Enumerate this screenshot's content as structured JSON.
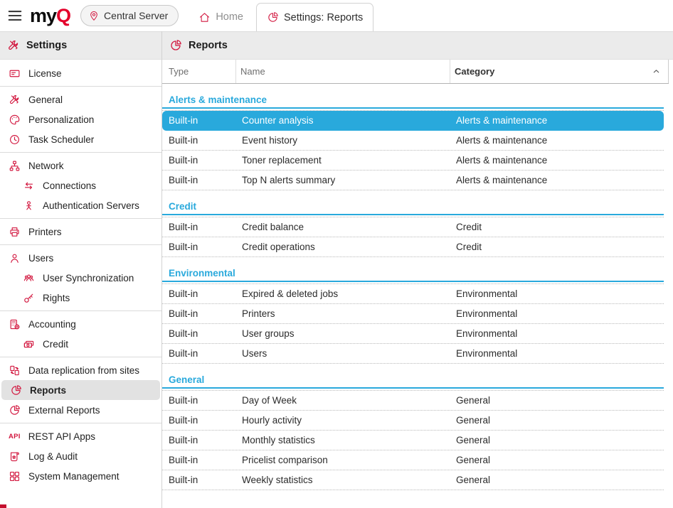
{
  "colors": {
    "accent_red": "#d2163e",
    "logo_red": "#e4002b",
    "selection_cyan": "#29a9dc",
    "header_gray": "#ebebeb"
  },
  "topbar": {
    "logo_my": "my",
    "logo_q": "Q",
    "server_label": "Central Server",
    "tabs": [
      {
        "label": "Home",
        "icon": "home-icon",
        "active": false
      },
      {
        "label": "Settings: Reports",
        "icon": "pie-chart-icon",
        "active": true
      }
    ]
  },
  "sidebar": {
    "title": "Settings",
    "title_icon": "tools-icon",
    "groups": [
      {
        "items": [
          {
            "label": "License",
            "icon": "license-icon"
          }
        ]
      },
      {
        "items": [
          {
            "label": "General",
            "icon": "tools-icon"
          },
          {
            "label": "Personalization",
            "icon": "palette-icon"
          },
          {
            "label": "Task Scheduler",
            "icon": "clock-icon"
          }
        ]
      },
      {
        "items": [
          {
            "label": "Network",
            "icon": "network-icon"
          },
          {
            "label": "Connections",
            "icon": "swap-arrows-icon",
            "indent": true
          },
          {
            "label": "Authentication Servers",
            "icon": "auth-person-icon",
            "indent": true
          }
        ]
      },
      {
        "items": [
          {
            "label": "Printers",
            "icon": "printer-icon"
          }
        ]
      },
      {
        "items": [
          {
            "label": "Users",
            "icon": "user-icon"
          },
          {
            "label": "User Synchronization",
            "icon": "user-group-icon",
            "indent": true
          },
          {
            "label": "Rights",
            "icon": "key-icon",
            "indent": true
          }
        ]
      },
      {
        "items": [
          {
            "label": "Accounting",
            "icon": "calculator-icon"
          },
          {
            "label": "Credit",
            "icon": "banknotes-icon",
            "indent": true
          }
        ]
      },
      {
        "items": [
          {
            "label": "Data replication from sites",
            "icon": "replication-icon"
          },
          {
            "label": "Reports",
            "icon": "pie-chart-icon",
            "selected": true
          },
          {
            "label": "External Reports",
            "icon": "pie-chart-icon"
          }
        ]
      },
      {
        "items": [
          {
            "label": "REST API Apps",
            "icon": "api-icon"
          },
          {
            "label": "Log & Audit",
            "icon": "scroll-icon"
          },
          {
            "label": "System Management",
            "icon": "grid-icon"
          }
        ]
      }
    ]
  },
  "main": {
    "title": "Reports",
    "title_icon": "pie-chart-icon",
    "table": {
      "columns": [
        "Type",
        "Name",
        "Category"
      ],
      "sort": {
        "column": "Category",
        "direction": "asc"
      },
      "groups": [
        {
          "name": "Alerts & maintenance",
          "rows": [
            {
              "type": "Built-in",
              "name": "Counter analysis",
              "category": "Alerts & maintenance",
              "selected": true
            },
            {
              "type": "Built-in",
              "name": "Event history",
              "category": "Alerts & maintenance"
            },
            {
              "type": "Built-in",
              "name": "Toner replacement",
              "category": "Alerts & maintenance"
            },
            {
              "type": "Built-in",
              "name": "Top N alerts summary",
              "category": "Alerts & maintenance"
            }
          ]
        },
        {
          "name": "Credit",
          "rows": [
            {
              "type": "Built-in",
              "name": "Credit balance",
              "category": "Credit"
            },
            {
              "type": "Built-in",
              "name": "Credit operations",
              "category": "Credit"
            }
          ]
        },
        {
          "name": "Environmental",
          "rows": [
            {
              "type": "Built-in",
              "name": "Expired & deleted jobs",
              "category": "Environmental"
            },
            {
              "type": "Built-in",
              "name": "Printers",
              "category": "Environmental"
            },
            {
              "type": "Built-in",
              "name": "User groups",
              "category": "Environmental"
            },
            {
              "type": "Built-in",
              "name": "Users",
              "category": "Environmental"
            }
          ]
        },
        {
          "name": "General",
          "rows": [
            {
              "type": "Built-in",
              "name": "Day of Week",
              "category": "General"
            },
            {
              "type": "Built-in",
              "name": "Hourly activity",
              "category": "General"
            },
            {
              "type": "Built-in",
              "name": "Monthly statistics",
              "category": "General"
            },
            {
              "type": "Built-in",
              "name": "Pricelist comparison",
              "category": "General"
            },
            {
              "type": "Built-in",
              "name": "Weekly statistics",
              "category": "General"
            }
          ]
        }
      ]
    }
  }
}
